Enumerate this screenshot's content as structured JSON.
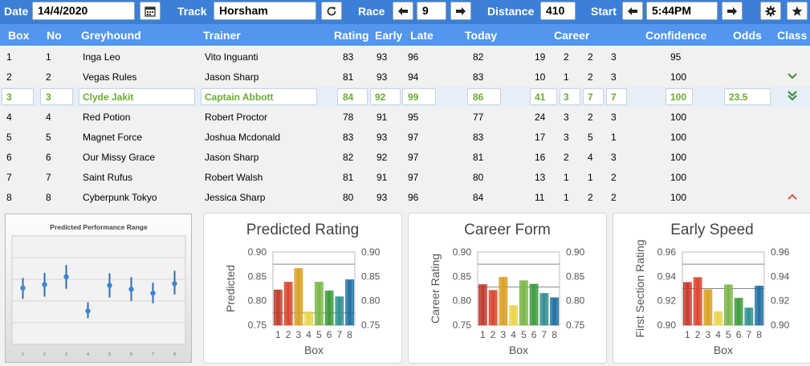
{
  "toolbar": {
    "date_label": "Date",
    "date_value": "14/4/2020",
    "track_label": "Track",
    "track_value": "Horsham",
    "race_label": "Race",
    "race_value": "9",
    "distance_label": "Distance",
    "distance_value": "410",
    "start_label": "Start",
    "start_value": "5:44PM",
    "icons": [
      "calendar-icon",
      "refresh-icon",
      "arrow-left-icon",
      "arrow-right-icon",
      "gear-icon",
      "star-icon"
    ]
  },
  "columns": {
    "box": "Box",
    "no": "No",
    "greyhound": "Greyhound",
    "trainer": "Trainer",
    "rating": "Rating",
    "early": "Early",
    "late": "Late",
    "today": "Today",
    "career": "Career",
    "confidence": "Confidence",
    "odds": "Odds",
    "class": "Class"
  },
  "runners": [
    {
      "box": "1",
      "no": "1",
      "greyhound": "Inga Leo",
      "trainer": "Vito Inguanti",
      "rating": "83",
      "early": "93",
      "late": "96",
      "today": "82",
      "career": [
        "19",
        "2",
        "2",
        "3"
      ],
      "confidence": "95",
      "odds": "",
      "class_icon": ""
    },
    {
      "box": "2",
      "no": "2",
      "greyhound": "Vegas Rules",
      "trainer": "Jason Sharp",
      "rating": "81",
      "early": "93",
      "late": "94",
      "today": "83",
      "career": [
        "10",
        "1",
        "2",
        "3"
      ],
      "confidence": "100",
      "odds": "",
      "class_icon": "chevron-down-icon"
    },
    {
      "box": "3",
      "no": "3",
      "greyhound": "Clyde Jakit",
      "trainer": "Captain Abbott",
      "rating": "84",
      "early": "92",
      "late": "99",
      "today": "86",
      "career": [
        "41",
        "3",
        "7",
        "7"
      ],
      "confidence": "100",
      "odds": "23.5",
      "class_icon": "double-chevron-down-icon"
    },
    {
      "box": "4",
      "no": "4",
      "greyhound": "Red Potion",
      "trainer": "Robert Proctor",
      "rating": "78",
      "early": "91",
      "late": "95",
      "today": "77",
      "career": [
        "24",
        "3",
        "2",
        "3"
      ],
      "confidence": "100",
      "odds": "",
      "class_icon": ""
    },
    {
      "box": "5",
      "no": "5",
      "greyhound": "Magnet Force",
      "trainer": "Joshua Mcdonald",
      "rating": "83",
      "early": "93",
      "late": "97",
      "today": "83",
      "career": [
        "17",
        "3",
        "5",
        "1"
      ],
      "confidence": "100",
      "odds": "",
      "class_icon": ""
    },
    {
      "box": "6",
      "no": "6",
      "greyhound": "Our Missy Grace",
      "trainer": "Jason Sharp",
      "rating": "82",
      "early": "92",
      "late": "97",
      "today": "81",
      "career": [
        "16",
        "2",
        "4",
        "3"
      ],
      "confidence": "100",
      "odds": "",
      "class_icon": ""
    },
    {
      "box": "7",
      "no": "7",
      "greyhound": "Saint Rufus",
      "trainer": "Robert Walsh",
      "rating": "81",
      "early": "91",
      "late": "97",
      "today": "80",
      "career": [
        "13",
        "1",
        "1",
        "2"
      ],
      "confidence": "100",
      "odds": "",
      "class_icon": ""
    },
    {
      "box": "8",
      "no": "8",
      "greyhound": "Cyberpunk Tokyo",
      "trainer": "Jessica Sharp",
      "rating": "80",
      "early": "93",
      "late": "96",
      "today": "84",
      "career": [
        "11",
        "1",
        "2",
        "2"
      ],
      "confidence": "100",
      "odds": "",
      "class_icon": "chevron-up-icon"
    }
  ],
  "colors": {
    "toolbar": "#3c7fd8",
    "header": "#5296ed",
    "selected_text": "#6aab2e",
    "class_down": "#3a8a3a",
    "class_up": "#d9534f",
    "bars": [
      "#c0392b",
      "#d9432b",
      "#d9a021",
      "#e8d44d",
      "#7ab648",
      "#3c9a3c",
      "#2f8f8f",
      "#1f6fa0"
    ]
  },
  "chart_data": [
    {
      "type": "scatter",
      "title": "Predicted Performance Range",
      "x": [
        "1",
        "2",
        "3",
        "4",
        "5",
        "6",
        "7",
        "8"
      ],
      "series": [
        {
          "values": [
            0.83,
            0.838,
            0.856,
            0.777,
            0.836,
            0.827,
            0.818,
            0.84
          ],
          "low": [
            0.805,
            0.81,
            0.828,
            0.76,
            0.808,
            0.8,
            0.795,
            0.815
          ],
          "high": [
            0.853,
            0.865,
            0.883,
            0.797,
            0.864,
            0.855,
            0.842,
            0.87
          ]
        }
      ],
      "ylim": [
        0.7,
        0.95
      ],
      "grid": true
    },
    {
      "type": "bar",
      "title": "Predicted Rating",
      "categories": [
        "1",
        "2",
        "3",
        "4",
        "5",
        "6",
        "7",
        "8"
      ],
      "values": [
        0.822,
        0.838,
        0.866,
        0.777,
        0.838,
        0.82,
        0.808,
        0.843
      ],
      "xlabel": "Box",
      "ylabel": "Predicted",
      "ylim": [
        0.75,
        0.9
      ],
      "yticks": [
        "0.75",
        "0.80",
        "0.85",
        "0.90"
      ],
      "reference_lines": [
        0.875,
        0.775
      ]
    },
    {
      "type": "bar",
      "title": "Career Form",
      "categories": [
        "1",
        "2",
        "3",
        "4",
        "5",
        "6",
        "7",
        "8"
      ],
      "values": [
        0.833,
        0.821,
        0.848,
        0.79,
        0.841,
        0.834,
        0.815,
        0.806
      ],
      "xlabel": "Box",
      "ylabel": "Career Rating",
      "ylim": [
        0.75,
        0.9
      ],
      "yticks": [
        "0.75",
        "0.80",
        "0.85",
        "0.90"
      ],
      "reference_lines": [
        0.875,
        0.828
      ]
    },
    {
      "type": "bar",
      "title": "Early Speed",
      "categories": [
        "1",
        "2",
        "3",
        "4",
        "5",
        "6",
        "7",
        "8"
      ],
      "values": [
        0.935,
        0.939,
        0.929,
        0.911,
        0.933,
        0.922,
        0.914,
        0.932
      ],
      "xlabel": "Box",
      "ylabel": "First Section Rating",
      "ylim": [
        0.9,
        0.96
      ],
      "yticks": [
        "0.90",
        "0.92",
        "0.94",
        "0.96"
      ],
      "reference_lines": [
        0.95,
        0.93
      ]
    }
  ]
}
